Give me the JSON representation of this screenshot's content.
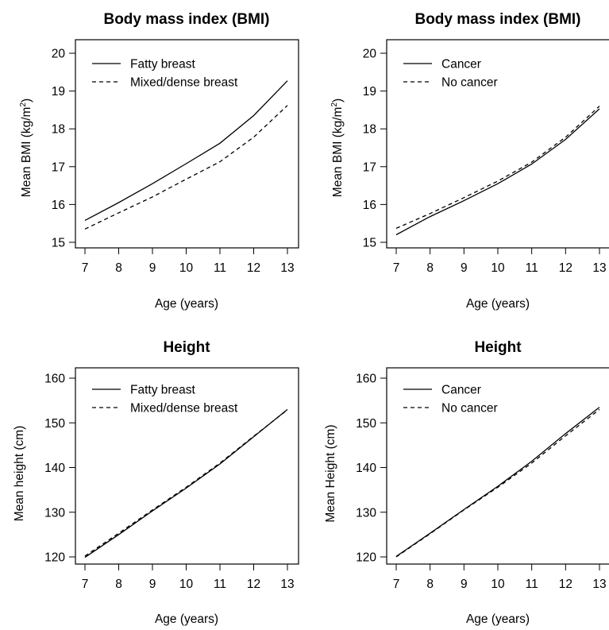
{
  "chart_data": [
    {
      "type": "line",
      "title": "Body mass index (BMI)",
      "xlabel": "Age (years)",
      "ylabel": "Mean BMI (kg/m²)",
      "ylabel_main": "Mean BMI (kg/m",
      "ylabel_sup": "2",
      "ylabel_end": ")",
      "xlim": [
        7,
        13
      ],
      "ylim": [
        15,
        20
      ],
      "x_ticks": [
        7,
        8,
        9,
        10,
        11,
        12,
        13
      ],
      "y_ticks": [
        15,
        16,
        17,
        18,
        19,
        20
      ],
      "grid": false,
      "legend_position": "top-left",
      "x": [
        7,
        8,
        9,
        10,
        11,
        12,
        13
      ],
      "series": [
        {
          "name": "Fatty breast",
          "line_style": "solid",
          "values": [
            15.58,
            16.05,
            16.55,
            17.08,
            17.62,
            18.35,
            19.27
          ]
        },
        {
          "name": "Mixed/dense breast",
          "line_style": "dashed",
          "values": [
            15.35,
            15.78,
            16.2,
            16.67,
            17.13,
            17.78,
            18.62
          ]
        }
      ]
    },
    {
      "type": "line",
      "title": "Body mass index (BMI)",
      "xlabel": "Age (years)",
      "ylabel": "Mean BMI (kg/m²)",
      "ylabel_main": "Mean BMI (kg/m",
      "ylabel_sup": "2",
      "ylabel_end": ")",
      "xlim": [
        7,
        13
      ],
      "ylim": [
        15,
        20
      ],
      "x_ticks": [
        7,
        8,
        9,
        10,
        11,
        12,
        13
      ],
      "y_ticks": [
        15,
        16,
        17,
        18,
        19,
        20
      ],
      "grid": false,
      "legend_position": "top-left",
      "x": [
        7,
        8,
        9,
        10,
        11,
        12,
        13
      ],
      "series": [
        {
          "name": "Cancer",
          "line_style": "solid",
          "values": [
            15.2,
            15.68,
            16.1,
            16.55,
            17.07,
            17.72,
            18.53
          ]
        },
        {
          "name": "No cancer",
          "line_style": "dashed",
          "values": [
            15.37,
            15.76,
            16.18,
            16.62,
            17.12,
            17.78,
            18.6
          ]
        }
      ]
    },
    {
      "type": "line",
      "title": "Height",
      "xlabel": "Age (years)",
      "ylabel": "Mean height (cm)",
      "ylabel_main": "Mean height (cm)",
      "ylabel_sup": "",
      "ylabel_end": "",
      "xlim": [
        7,
        13
      ],
      "ylim": [
        120,
        160
      ],
      "x_ticks": [
        7,
        8,
        9,
        10,
        11,
        12,
        13
      ],
      "y_ticks": [
        120,
        130,
        140,
        150,
        160
      ],
      "grid": false,
      "legend_position": "top-left",
      "x": [
        7,
        8,
        9,
        10,
        11,
        12,
        13
      ],
      "series": [
        {
          "name": "Fatty breast",
          "line_style": "solid",
          "values": [
            119.9,
            125.0,
            130.3,
            135.4,
            140.8,
            146.9,
            153.0
          ]
        },
        {
          "name": "Mixed/dense breast",
          "line_style": "dashed",
          "values": [
            120.2,
            125.3,
            130.5,
            135.6,
            141.0,
            147.0,
            152.9
          ]
        }
      ]
    },
    {
      "type": "line",
      "title": "Height",
      "xlabel": "Age (years)",
      "ylabel": "Mean Height (cm)",
      "ylabel_main": "Mean Height (cm)",
      "ylabel_sup": "",
      "ylabel_end": "",
      "xlim": [
        7,
        13
      ],
      "ylim": [
        120,
        160
      ],
      "x_ticks": [
        7,
        8,
        9,
        10,
        11,
        12,
        13
      ],
      "y_ticks": [
        120,
        130,
        140,
        150,
        160
      ],
      "grid": false,
      "legend_position": "top-left",
      "x": [
        7,
        8,
        9,
        10,
        11,
        12,
        13
      ],
      "series": [
        {
          "name": "Cancer",
          "line_style": "solid",
          "values": [
            120.1,
            125.3,
            130.6,
            135.8,
            141.4,
            147.6,
            153.5
          ]
        },
        {
          "name": "No cancer",
          "line_style": "dashed",
          "values": [
            120.0,
            125.2,
            130.5,
            135.6,
            141.0,
            147.1,
            153.0
          ]
        }
      ]
    }
  ]
}
